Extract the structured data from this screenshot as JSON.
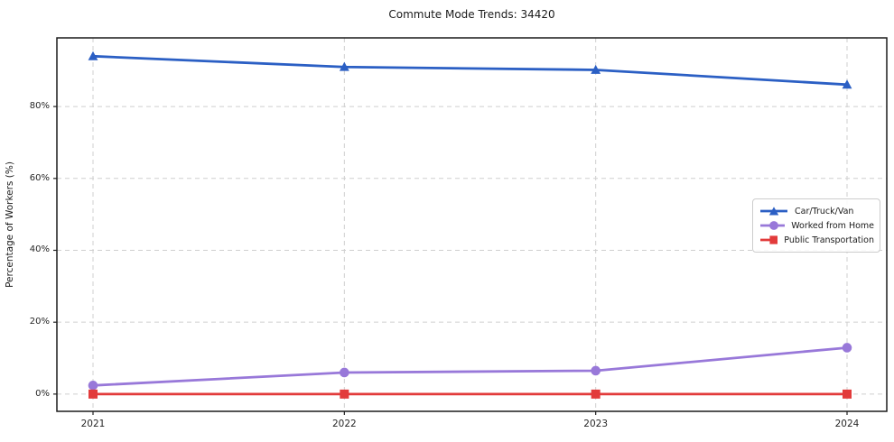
{
  "title": "Commute Mode Trends: 34420",
  "chart_data": {
    "type": "line",
    "title": "Commute Mode Trends: 34420",
    "xlabel": "",
    "ylabel": "Percentage of Workers (%)",
    "categories": [
      "2021",
      "2022",
      "2023",
      "2024"
    ],
    "series": [
      {
        "name": "Car/Truck/Van",
        "color": "#2b5fc4",
        "marker": "triangle",
        "values": [
          94.0,
          91.0,
          90.2,
          86.1
        ]
      },
      {
        "name": "Worked from Home",
        "color": "#9878d9",
        "marker": "circle",
        "values": [
          2.4,
          6.0,
          6.5,
          12.9
        ]
      },
      {
        "name": "Public Transportation",
        "color": "#e23b3b",
        "marker": "square",
        "values": [
          0.0,
          0.0,
          0.0,
          0.0
        ]
      }
    ],
    "y_ticks": [
      0,
      20,
      40,
      60,
      80
    ],
    "y_tick_labels": [
      "0%",
      "20%",
      "40%",
      "60%",
      "80%"
    ],
    "ylim": [
      -4.8,
      99.1
    ],
    "grid": "dashed gray, horizontal and vertical",
    "legend_position": "center right",
    "background": "#ffffff"
  }
}
